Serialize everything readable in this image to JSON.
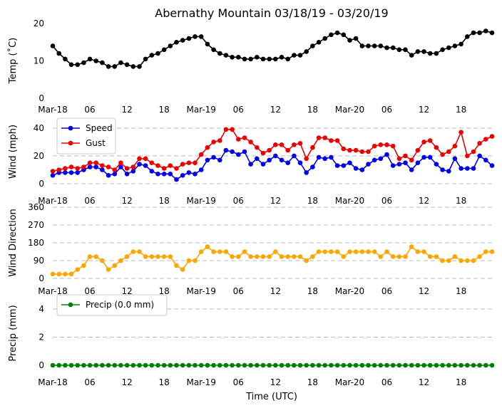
{
  "chart_data": {
    "type": "line",
    "title": "Abernathy Mountain 03/18/19 - 03/20/19",
    "xlabel": "Time (UTC)",
    "x_start_hour": 0,
    "x_end_hour": 71,
    "x_ticks": [
      {
        "hour": 0,
        "label": "Mar-18"
      },
      {
        "hour": 6,
        "label": "06"
      },
      {
        "hour": 12,
        "label": "12"
      },
      {
        "hour": 18,
        "label": "18"
      },
      {
        "hour": 24,
        "label": "Mar-19"
      },
      {
        "hour": 30,
        "label": "06"
      },
      {
        "hour": 36,
        "label": "12"
      },
      {
        "hour": 42,
        "label": "18"
      },
      {
        "hour": 48,
        "label": "Mar-20"
      },
      {
        "hour": 54,
        "label": "06"
      },
      {
        "hour": 60,
        "label": "12"
      },
      {
        "hour": 66,
        "label": "18"
      }
    ],
    "panels": [
      {
        "name": "temp",
        "ylabel": "Temp (˚C)",
        "ylim": [
          0,
          20
        ],
        "yticks": [
          0,
          10,
          20
        ],
        "grid": false,
        "legend": null,
        "series": [
          {
            "name": "Temp",
            "color": "#000000",
            "values": [
              14,
              12,
              10.5,
              9,
              9,
              9.5,
              10.5,
              10,
              9.5,
              8.5,
              8.5,
              9.5,
              9,
              8.5,
              8.5,
              10.5,
              11.5,
              12,
              13,
              14,
              15,
              15.5,
              16,
              16.5,
              16.5,
              14.5,
              13,
              12,
              11.5,
              11,
              11,
              10.5,
              10.5,
              11,
              10.5,
              10.5,
              10.5,
              11,
              10.5,
              11.5,
              11.5,
              12.5,
              14,
              15,
              16,
              17,
              17.5,
              17,
              15.5,
              16,
              14,
              14,
              14,
              14,
              13.5,
              13.5,
              13,
              13,
              11.5,
              12.5,
              12.5,
              12,
              12,
              13,
              13.5,
              14,
              14.5,
              16.5,
              17.5,
              17.5,
              18,
              17.5
            ]
          }
        ]
      },
      {
        "name": "wind",
        "ylabel": "Wind (mph)",
        "ylim": [
          0,
          44
        ],
        "yticks": [
          0,
          20,
          40
        ],
        "grid": true,
        "legend": "top-left",
        "series": [
          {
            "name": "Speed",
            "color": "#0000ee",
            "values": [
              6,
              8,
              8,
              8,
              8,
              10,
              12,
              12,
              10,
              6,
              7,
              12,
              7,
              9,
              14,
              13,
              9,
              7,
              7,
              7,
              3,
              6,
              8,
              7,
              10,
              17,
              19,
              17,
              24,
              23,
              21,
              23,
              14,
              18,
              14,
              17,
              20,
              17,
              15,
              20,
              15,
              8,
              12,
              19,
              18,
              19,
              13,
              13,
              15,
              11,
              10,
              14,
              17,
              18,
              21,
              13,
              14,
              15,
              10,
              15,
              19,
              19,
              14,
              10,
              9,
              18,
              11,
              11,
              11,
              20,
              17,
              13
            ]
          },
          {
            "name": "Gust",
            "color": "#ee0000",
            "values": [
              9,
              10,
              11,
              12,
              11,
              12,
              15,
              15,
              13,
              12,
              10,
              15,
              11,
              12,
              18,
              18,
              15,
              13,
              11,
              13,
              11,
              14,
              15,
              15,
              21,
              26,
              30,
              31,
              39,
              39,
              32,
              33,
              30,
              26,
              22,
              24,
              28,
              28,
              24,
              28,
              29,
              18,
              26,
              33,
              33,
              31,
              31,
              25,
              24,
              24,
              23,
              23,
              27,
              28,
              28,
              27,
              18,
              20,
              17,
              24,
              30,
              31,
              26,
              21,
              23,
              27,
              37,
              20,
              23,
              29,
              32,
              34
            ]
          }
        ]
      },
      {
        "name": "direction",
        "ylabel": "Wind Direction",
        "ylim": [
          0,
          360
        ],
        "yticks": [
          0,
          90,
          180,
          270,
          360
        ],
        "grid": true,
        "legend": null,
        "series": [
          {
            "name": "Direction",
            "color": "#ffa500",
            "values": [
              22,
              22,
              22,
              22,
              45,
              65,
              110,
              110,
              90,
              45,
              65,
              90,
              110,
              135,
              135,
              110,
              110,
              110,
              110,
              110,
              65,
              45,
              90,
              90,
              135,
              160,
              135,
              135,
              135,
              110,
              110,
              135,
              110,
              110,
              110,
              110,
              135,
              110,
              110,
              110,
              110,
              90,
              110,
              135,
              135,
              135,
              135,
              110,
              135,
              135,
              135,
              135,
              135,
              110,
              135,
              110,
              110,
              110,
              160,
              135,
              135,
              110,
              110,
              90,
              90,
              110,
              90,
              90,
              90,
              110,
              135,
              135
            ]
          }
        ]
      },
      {
        "name": "precip",
        "ylabel": "Precip (mm)",
        "ylim": [
          -0.1,
          4.7
        ],
        "yticks": [
          0,
          2,
          4
        ],
        "grid": true,
        "legend": "top-left",
        "series": [
          {
            "name": "Precip (0.0 mm)",
            "color": "#008000",
            "values": [
              0,
              0,
              0,
              0,
              0,
              0,
              0,
              0,
              0,
              0,
              0,
              0,
              0,
              0,
              0,
              0,
              0,
              0,
              0,
              0,
              0,
              0,
              0,
              0,
              0,
              0,
              0,
              0,
              0,
              0,
              0,
              0,
              0,
              0,
              0,
              0,
              0,
              0,
              0,
              0,
              0,
              0,
              0,
              0,
              0,
              0,
              0,
              0,
              0,
              0,
              0,
              0,
              0,
              0,
              0,
              0,
              0,
              0,
              0,
              0,
              0,
              0,
              0,
              0,
              0,
              0,
              0,
              0,
              0,
              0,
              0,
              0
            ]
          }
        ]
      }
    ]
  }
}
